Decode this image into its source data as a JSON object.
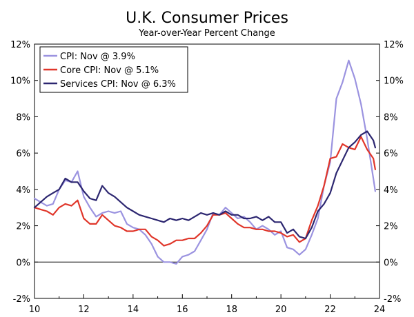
{
  "chart_data": {
    "type": "line",
    "title": "U.K. Consumer Prices",
    "subtitle": "Year-over-Year Percent Change",
    "xlabel": "",
    "ylabel": "",
    "xlim": [
      2010,
      2024
    ],
    "ylim": [
      -2,
      12
    ],
    "x_ticks": [
      {
        "value": 2010,
        "label": "10"
      },
      {
        "value": 2012,
        "label": "12"
      },
      {
        "value": 2014,
        "label": "14"
      },
      {
        "value": 2016,
        "label": "16"
      },
      {
        "value": 2018,
        "label": "18"
      },
      {
        "value": 2020,
        "label": "20"
      },
      {
        "value": 2022,
        "label": "22"
      },
      {
        "value": 2024,
        "label": "24"
      }
    ],
    "y_ticks": [
      {
        "value": -2,
        "label": "-2%"
      },
      {
        "value": 0,
        "label": "0%"
      },
      {
        "value": 2,
        "label": "2%"
      },
      {
        "value": 4,
        "label": "4%"
      },
      {
        "value": 6,
        "label": "6%"
      },
      {
        "value": 8,
        "label": "8%"
      },
      {
        "value": 10,
        "label": "10%"
      },
      {
        "value": 12,
        "label": "12%"
      }
    ],
    "grid": false,
    "legend_position": "top-left",
    "series": [
      {
        "name": "CPI: Nov @ 3.9%",
        "color": "#9b93e0",
        "points": [
          [
            2010.0,
            3.5
          ],
          [
            2010.25,
            3.3
          ],
          [
            2010.5,
            3.1
          ],
          [
            2010.75,
            3.2
          ],
          [
            2011.0,
            4.0
          ],
          [
            2011.25,
            4.5
          ],
          [
            2011.5,
            4.4
          ],
          [
            2011.75,
            5.0
          ],
          [
            2012.0,
            3.6
          ],
          [
            2012.25,
            3.0
          ],
          [
            2012.5,
            2.5
          ],
          [
            2012.75,
            2.7
          ],
          [
            2013.0,
            2.8
          ],
          [
            2013.25,
            2.7
          ],
          [
            2013.5,
            2.8
          ],
          [
            2013.75,
            2.1
          ],
          [
            2014.0,
            1.9
          ],
          [
            2014.25,
            1.8
          ],
          [
            2014.5,
            1.5
          ],
          [
            2014.75,
            1.0
          ],
          [
            2015.0,
            0.3
          ],
          [
            2015.25,
            0.0
          ],
          [
            2015.5,
            0.0
          ],
          [
            2015.75,
            -0.1
          ],
          [
            2016.0,
            0.3
          ],
          [
            2016.25,
            0.4
          ],
          [
            2016.5,
            0.6
          ],
          [
            2016.75,
            1.2
          ],
          [
            2017.0,
            1.8
          ],
          [
            2017.25,
            2.7
          ],
          [
            2017.5,
            2.6
          ],
          [
            2017.75,
            3.0
          ],
          [
            2018.0,
            2.7
          ],
          [
            2018.25,
            2.4
          ],
          [
            2018.5,
            2.5
          ],
          [
            2018.75,
            2.2
          ],
          [
            2019.0,
            1.8
          ],
          [
            2019.25,
            2.0
          ],
          [
            2019.5,
            1.8
          ],
          [
            2019.75,
            1.5
          ],
          [
            2020.0,
            1.7
          ],
          [
            2020.25,
            0.8
          ],
          [
            2020.5,
            0.7
          ],
          [
            2020.75,
            0.4
          ],
          [
            2021.0,
            0.7
          ],
          [
            2021.25,
            1.5
          ],
          [
            2021.5,
            2.4
          ],
          [
            2021.75,
            4.2
          ],
          [
            2022.0,
            5.5
          ],
          [
            2022.25,
            9.0
          ],
          [
            2022.5,
            9.9
          ],
          [
            2022.75,
            11.1
          ],
          [
            2023.0,
            10.1
          ],
          [
            2023.25,
            8.7
          ],
          [
            2023.5,
            6.8
          ],
          [
            2023.75,
            4.6
          ],
          [
            2023.83,
            3.9
          ]
        ]
      },
      {
        "name": "Core CPI: Nov @ 5.1%",
        "color": "#e0362a",
        "points": [
          [
            2010.0,
            3.0
          ],
          [
            2010.25,
            2.9
          ],
          [
            2010.5,
            2.8
          ],
          [
            2010.75,
            2.6
          ],
          [
            2011.0,
            3.0
          ],
          [
            2011.25,
            3.2
          ],
          [
            2011.5,
            3.1
          ],
          [
            2011.75,
            3.4
          ],
          [
            2012.0,
            2.4
          ],
          [
            2012.25,
            2.1
          ],
          [
            2012.5,
            2.1
          ],
          [
            2012.75,
            2.6
          ],
          [
            2013.0,
            2.3
          ],
          [
            2013.25,
            2.0
          ],
          [
            2013.5,
            1.9
          ],
          [
            2013.75,
            1.7
          ],
          [
            2014.0,
            1.7
          ],
          [
            2014.25,
            1.8
          ],
          [
            2014.5,
            1.8
          ],
          [
            2014.75,
            1.4
          ],
          [
            2015.0,
            1.2
          ],
          [
            2015.25,
            0.9
          ],
          [
            2015.5,
            1.0
          ],
          [
            2015.75,
            1.2
          ],
          [
            2016.0,
            1.2
          ],
          [
            2016.25,
            1.3
          ],
          [
            2016.5,
            1.3
          ],
          [
            2016.75,
            1.6
          ],
          [
            2017.0,
            2.0
          ],
          [
            2017.25,
            2.6
          ],
          [
            2017.5,
            2.6
          ],
          [
            2017.75,
            2.7
          ],
          [
            2018.0,
            2.4
          ],
          [
            2018.25,
            2.1
          ],
          [
            2018.5,
            1.9
          ],
          [
            2018.75,
            1.9
          ],
          [
            2019.0,
            1.8
          ],
          [
            2019.25,
            1.8
          ],
          [
            2019.5,
            1.7
          ],
          [
            2019.75,
            1.7
          ],
          [
            2020.0,
            1.6
          ],
          [
            2020.25,
            1.4
          ],
          [
            2020.5,
            1.5
          ],
          [
            2020.75,
            1.1
          ],
          [
            2021.0,
            1.3
          ],
          [
            2021.25,
            2.3
          ],
          [
            2021.5,
            3.1
          ],
          [
            2021.75,
            4.2
          ],
          [
            2022.0,
            5.7
          ],
          [
            2022.25,
            5.8
          ],
          [
            2022.5,
            6.5
          ],
          [
            2022.75,
            6.3
          ],
          [
            2023.0,
            6.2
          ],
          [
            2023.25,
            6.9
          ],
          [
            2023.5,
            6.2
          ],
          [
            2023.75,
            5.7
          ],
          [
            2023.83,
            5.1
          ]
        ]
      },
      {
        "name": "Services CPI: Nov @ 6.3%",
        "color": "#2c2670",
        "points": [
          [
            2010.0,
            3.0
          ],
          [
            2010.25,
            3.3
          ],
          [
            2010.5,
            3.6
          ],
          [
            2010.75,
            3.8
          ],
          [
            2011.0,
            4.0
          ],
          [
            2011.25,
            4.6
          ],
          [
            2011.5,
            4.4
          ],
          [
            2011.75,
            4.4
          ],
          [
            2012.0,
            3.9
          ],
          [
            2012.25,
            3.5
          ],
          [
            2012.5,
            3.4
          ],
          [
            2012.75,
            4.2
          ],
          [
            2013.0,
            3.8
          ],
          [
            2013.25,
            3.6
          ],
          [
            2013.5,
            3.3
          ],
          [
            2013.75,
            3.0
          ],
          [
            2014.0,
            2.8
          ],
          [
            2014.25,
            2.6
          ],
          [
            2014.5,
            2.5
          ],
          [
            2014.75,
            2.4
          ],
          [
            2015.0,
            2.3
          ],
          [
            2015.25,
            2.2
          ],
          [
            2015.5,
            2.4
          ],
          [
            2015.75,
            2.3
          ],
          [
            2016.0,
            2.4
          ],
          [
            2016.25,
            2.3
          ],
          [
            2016.5,
            2.5
          ],
          [
            2016.75,
            2.7
          ],
          [
            2017.0,
            2.6
          ],
          [
            2017.25,
            2.7
          ],
          [
            2017.5,
            2.6
          ],
          [
            2017.75,
            2.8
          ],
          [
            2018.0,
            2.6
          ],
          [
            2018.25,
            2.6
          ],
          [
            2018.5,
            2.4
          ],
          [
            2018.75,
            2.4
          ],
          [
            2019.0,
            2.5
          ],
          [
            2019.25,
            2.3
          ],
          [
            2019.5,
            2.5
          ],
          [
            2019.75,
            2.2
          ],
          [
            2020.0,
            2.2
          ],
          [
            2020.25,
            1.6
          ],
          [
            2020.5,
            1.8
          ],
          [
            2020.75,
            1.4
          ],
          [
            2021.0,
            1.3
          ],
          [
            2021.25,
            1.9
          ],
          [
            2021.5,
            2.8
          ],
          [
            2021.75,
            3.2
          ],
          [
            2022.0,
            3.8
          ],
          [
            2022.25,
            4.9
          ],
          [
            2022.5,
            5.6
          ],
          [
            2022.75,
            6.3
          ],
          [
            2023.0,
            6.6
          ],
          [
            2023.25,
            7.0
          ],
          [
            2023.5,
            7.2
          ],
          [
            2023.75,
            6.7
          ],
          [
            2023.83,
            6.3
          ]
        ]
      }
    ]
  }
}
